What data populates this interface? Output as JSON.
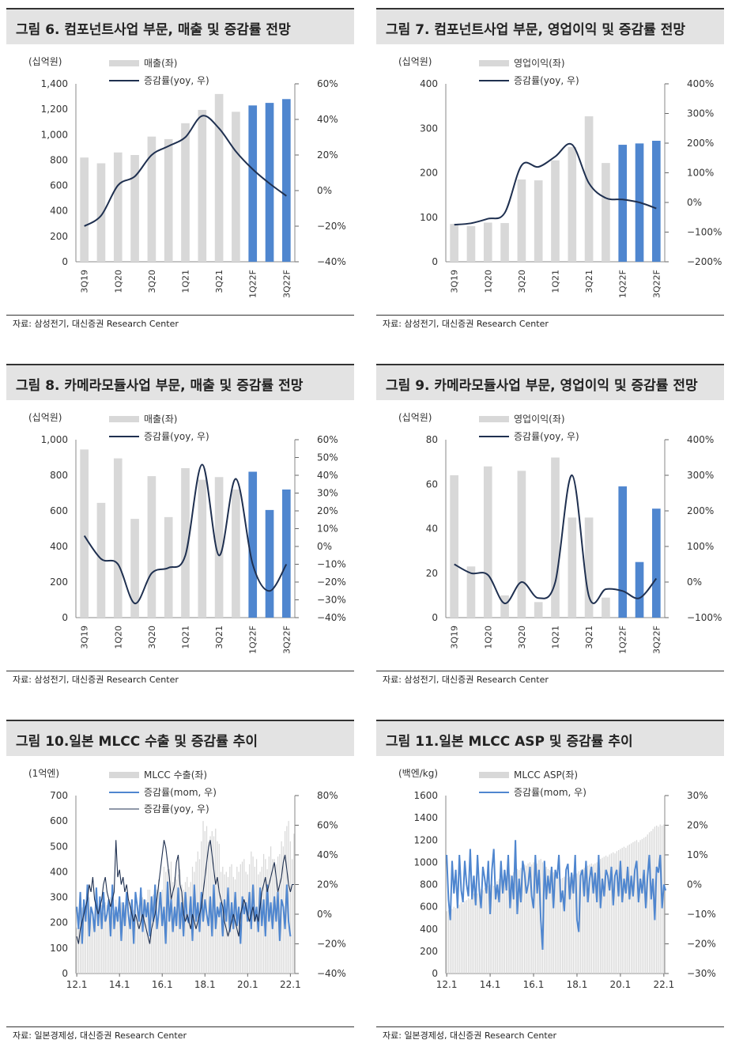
{
  "charts": [
    {
      "fig": "그림 6.",
      "title": "컴포넌트사업 부문, 매출 및 증감률 전망",
      "source": "자료: 삼성전기, 대신증권 Research Center",
      "unit": "(십억원)",
      "legend_bar": "매출(좌)",
      "legend_line": "증감률(yoy, 우)",
      "yticks": [
        "1,400",
        "1,200",
        "1,000",
        "800",
        "600",
        "400",
        "200",
        "0"
      ],
      "y2ticks": [
        "60%",
        "40%",
        "20%",
        "0%",
        "-20%",
        "-40%"
      ],
      "xlabels": [
        "3Q19",
        "1Q20",
        "3Q20",
        "1Q21",
        "3Q21",
        "1Q22F",
        "3Q22F"
      ]
    },
    {
      "fig": "그림 7.",
      "title": "컴포넌트사업 부문, 영업이익 및 증감률 전망",
      "source": "자료: 삼성전기, 대신증권 Research Center",
      "unit": "(십억원)",
      "legend_bar": "영업이익(좌)",
      "legend_line": "증감률(yoy, 우)",
      "yticks": [
        "400",
        "300",
        "200",
        "100",
        "0"
      ],
      "y2ticks": [
        "400%",
        "300%",
        "200%",
        "100%",
        "0%",
        "-100%",
        "-200%"
      ],
      "xlabels": [
        "3Q19",
        "1Q20",
        "3Q20",
        "1Q21",
        "3Q21",
        "1Q22F",
        "3Q22F"
      ]
    },
    {
      "fig": "그림 8.",
      "title": "카메라모듈사업 부문, 매출 및 증감률 전망",
      "source": "자료: 삼성전기, 대신증권 Research Center",
      "unit": "(십억원)",
      "legend_bar": "매출(좌)",
      "legend_line": "증감률(yoy, 우)",
      "yticks": [
        "1,000",
        "800",
        "600",
        "400",
        "200",
        "0"
      ],
      "y2ticks": [
        "60%",
        "50%",
        "40%",
        "30%",
        "20%",
        "10%",
        "0%",
        "-10%",
        "-20%",
        "-30%",
        "-40%"
      ],
      "xlabels": [
        "3Q19",
        "1Q20",
        "3Q20",
        "1Q21",
        "3Q21",
        "1Q22F",
        "3Q22F"
      ]
    },
    {
      "fig": "그림 9.",
      "title": "카메라모듈사업 부문, 영업이익 및 증감률 전망",
      "source": "자료: 삼성전기, 대신증권 Research Center",
      "unit": "(십억원)",
      "legend_bar": "영업이익(좌)",
      "legend_line": "증감률(yoy, 우)",
      "yticks": [
        "80",
        "60",
        "40",
        "20",
        "0"
      ],
      "y2ticks": [
        "400%",
        "300%",
        "200%",
        "100%",
        "0%",
        "-100%"
      ],
      "xlabels": [
        "3Q19",
        "1Q20",
        "3Q20",
        "1Q21",
        "3Q21",
        "1Q22F",
        "3Q22F"
      ]
    },
    {
      "fig": "그림 10.",
      "title": "일본 MLCC 수출 및 증감률 추이",
      "source": "자료: 일본경제성, 대신증권 Research Center",
      "unit": "(1억엔)",
      "legend_bar": "MLCC 수출(좌)",
      "legend_line": "증감률(mom, 우)",
      "legend_line2": "증감률(yoy, 우)",
      "yticks": [
        "700",
        "600",
        "500",
        "400",
        "300",
        "200",
        "100",
        "0"
      ],
      "y2ticks": [
        "80%",
        "60%",
        "40%",
        "20%",
        "0%",
        "-20%",
        "-40%"
      ],
      "xlabels": [
        "12.1",
        "14.1",
        "16.1",
        "18.1",
        "20.1",
        "22.1"
      ]
    },
    {
      "fig": "그림 11.",
      "title": "일본 MLCC ASP 및 증감률 추이",
      "source": "자료: 일본경제성, 대신증권 Research Center",
      "unit": "(백엔/kg)",
      "legend_bar": "MLCC ASP(좌)",
      "legend_line": "증감률(mom, 우)",
      "yticks": [
        "1600",
        "1400",
        "1200",
        "1000",
        "800",
        "600",
        "400",
        "200",
        "0"
      ],
      "y2ticks": [
        "30%",
        "20%",
        "10%",
        "0%",
        "-10%",
        "-20%",
        "-30%"
      ],
      "xlabels": [
        "12.1",
        "14.1",
        "16.1",
        "18.1",
        "20.1",
        "22.1"
      ]
    }
  ],
  "chart_data": [
    {
      "type": "bar",
      "categories": [
        "3Q19",
        "4Q19",
        "1Q20",
        "2Q20",
        "3Q20",
        "4Q20",
        "1Q21",
        "2Q21",
        "3Q21",
        "4Q21",
        "1Q22F",
        "2Q22F",
        "3Q22F"
      ],
      "series": [
        {
          "name": "매출(좌)",
          "axis": "left",
          "values": [
            820,
            775,
            860,
            840,
            985,
            965,
            1090,
            1195,
            1320,
            1180,
            1230,
            1250,
            1280
          ]
        },
        {
          "name": "증감률(yoy, 우)",
          "type": "line",
          "axis": "right",
          "values": [
            -20,
            -14,
            3,
            8,
            20,
            25,
            30,
            42,
            35,
            22,
            12,
            4,
            -3
          ]
        }
      ],
      "forecast_from": 10,
      "ylim": [
        0,
        1400
      ],
      "y2lim": [
        -40,
        60
      ]
    },
    {
      "type": "bar",
      "categories": [
        "3Q19",
        "4Q19",
        "1Q20",
        "2Q20",
        "3Q20",
        "4Q20",
        "1Q21",
        "2Q21",
        "3Q21",
        "4Q21",
        "1Q22F",
        "2Q22F",
        "3Q22F"
      ],
      "series": [
        {
          "name": "영업이익(좌)",
          "axis": "left",
          "values": [
            85,
            80,
            88,
            87,
            185,
            183,
            228,
            258,
            327,
            222,
            263,
            266,
            272
          ]
        },
        {
          "name": "증감률(yoy, 우)",
          "type": "line",
          "axis": "right",
          "values": [
            -75,
            -70,
            -55,
            -35,
            125,
            120,
            155,
            195,
            65,
            15,
            10,
            0,
            -20
          ]
        }
      ],
      "forecast_from": 10,
      "ylim": [
        0,
        400
      ],
      "y2lim": [
        -200,
        400
      ]
    },
    {
      "type": "bar",
      "categories": [
        "3Q19",
        "4Q19",
        "1Q20",
        "2Q20",
        "3Q20",
        "4Q20",
        "1Q21",
        "2Q21",
        "3Q21",
        "4Q21",
        "1Q22F",
        "2Q22F",
        "3Q22F"
      ],
      "series": [
        {
          "name": "매출(좌)",
          "axis": "left",
          "values": [
            945,
            645,
            895,
            555,
            795,
            565,
            840,
            775,
            790,
            720,
            820,
            605,
            720
          ]
        },
        {
          "name": "증감률(yoy, 우)",
          "type": "line",
          "axis": "right",
          "values": [
            6,
            -7,
            -10,
            -32,
            -15,
            -12,
            -5,
            46,
            -5,
            38,
            -10,
            -25,
            -10
          ]
        }
      ],
      "forecast_from": 10,
      "ylim": [
        0,
        1000
      ],
      "y2lim": [
        -40,
        60
      ]
    },
    {
      "type": "bar",
      "categories": [
        "3Q19",
        "4Q19",
        "1Q20",
        "2Q20",
        "3Q20",
        "4Q20",
        "1Q21",
        "2Q21",
        "3Q21",
        "4Q21",
        "1Q22F",
        "2Q22F",
        "3Q22F"
      ],
      "series": [
        {
          "name": "영업이익(좌)",
          "axis": "left",
          "values": [
            64,
            23,
            68,
            10,
            66,
            7,
            72,
            45,
            45,
            9,
            59,
            25,
            49
          ]
        },
        {
          "name": "증감률(yoy, 우)",
          "type": "line",
          "axis": "right",
          "values": [
            50,
            25,
            20,
            -60,
            0,
            -45,
            0,
            300,
            -40,
            -20,
            -25,
            -45,
            10
          ]
        }
      ],
      "forecast_from": 10,
      "ylim": [
        0,
        80
      ],
      "y2lim": [
        -100,
        400
      ]
    },
    {
      "type": "bar",
      "x_start": "2012-01",
      "x_end": "2022-03",
      "series": [
        {
          "name": "MLCC 수출(좌)",
          "axis": "left",
          "values": [
            180,
            240,
            300,
            260,
            230,
            210,
            270,
            300,
            250,
            220,
            200,
            260,
            210,
            260,
            270,
            240,
            280,
            270,
            260,
            300,
            240,
            250,
            290,
            240,
            230,
            280,
            260,
            270,
            290,
            280,
            280,
            290,
            250,
            290,
            280,
            270,
            270,
            300,
            280,
            290,
            330,
            330,
            290,
            310,
            300,
            330,
            370,
            320,
            330,
            420,
            400,
            410,
            410,
            440,
            360,
            380,
            370,
            390,
            410,
            350,
            330,
            360,
            380,
            340,
            360,
            420,
            400,
            440,
            480,
            450,
            520,
            600,
            560,
            580,
            520,
            540,
            560,
            540,
            570,
            520,
            510,
            400,
            420,
            390,
            400,
            380,
            420,
            430,
            380,
            370,
            420,
            400,
            430,
            440,
            450,
            400,
            390,
            430,
            480,
            460,
            420,
            450,
            390,
            400,
            420,
            470,
            450,
            410,
            460,
            500,
            450,
            450,
            430,
            460,
            470,
            520,
            500,
            560,
            580,
            600,
            520,
            450,
            550
          ]
        },
        {
          "name": "증감률(mom, 우)",
          "type": "line",
          "axis": "right",
          "values": [
            5,
            -10,
            15,
            -20,
            10,
            -5,
            20,
            -15,
            5,
            0,
            -12,
            18,
            -8,
            12,
            -10,
            15,
            -5,
            0,
            10,
            -15,
            20,
            -10,
            5,
            -5,
            12,
            -18,
            8,
            -8,
            15,
            0,
            -10,
            10,
            -20,
            15,
            5,
            -5,
            18,
            -12,
            10,
            -2,
            8,
            -15,
            12,
            -5,
            20,
            -10,
            0,
            15,
            -8,
            5,
            -20,
            22,
            -5,
            10,
            -12,
            5,
            -8,
            18,
            -10,
            8,
            -15,
            15,
            -3,
            -6,
            12,
            -18,
            20,
            -5,
            8,
            -12,
            15,
            -5,
            10,
            0,
            -8,
            12,
            -15,
            20,
            -10,
            5,
            -2,
            8,
            -15,
            10,
            -5,
            18,
            -12,
            8,
            -10,
            15,
            -8,
            5,
            -20,
            12,
            0,
            8,
            -5,
            15,
            -10,
            20,
            -5,
            5,
            -12,
            18,
            -8,
            10,
            -15,
            20,
            -5,
            8,
            -10,
            12,
            -5,
            15,
            -18,
            10,
            5,
            -10,
            20,
            -5,
            -15
          ]
        },
        {
          "name": "증감률(yoy, 우)",
          "type": "line",
          "axis": "right",
          "values": [
            -15,
            -20,
            -10,
            -5,
            0,
            5,
            10,
            20,
            15,
            25,
            10,
            5,
            0,
            5,
            10,
            20,
            25,
            15,
            10,
            5,
            10,
            15,
            50,
            25,
            30,
            20,
            25,
            15,
            20,
            10,
            5,
            0,
            -5,
            0,
            -5,
            -10,
            -5,
            0,
            -5,
            -10,
            -15,
            -20,
            -10,
            -5,
            0,
            10,
            20,
            30,
            40,
            50,
            45,
            35,
            25,
            10,
            15,
            20,
            35,
            40,
            20,
            15,
            0,
            -5,
            0,
            -5,
            -10,
            0,
            -5,
            -10,
            -5,
            0,
            5,
            15,
            25,
            35,
            45,
            50,
            40,
            30,
            20,
            25,
            15,
            10,
            5,
            -5,
            -10,
            -15,
            -10,
            -5,
            0,
            -5,
            -10,
            -15,
            0,
            5,
            10,
            5,
            0,
            -5,
            0,
            5,
            -5,
            0,
            -5,
            5,
            15,
            20,
            25,
            15,
            20,
            25,
            30,
            35,
            25,
            15,
            20,
            25,
            35,
            40,
            30,
            20,
            15,
            20,
            20
          ]
        }
      ],
      "ylim": [
        0,
        700
      ],
      "y2lim": [
        -40,
        80
      ]
    },
    {
      "type": "bar",
      "x_start": "2012-01",
      "x_end": "2022-03",
      "series": [
        {
          "name": "MLCC ASP(좌)",
          "axis": "left",
          "values": [
            560,
            570,
            560,
            580,
            600,
            590,
            610,
            620,
            640,
            630,
            650,
            660,
            680,
            670,
            700,
            720,
            730,
            720,
            740,
            760,
            750,
            770,
            780,
            790,
            800,
            810,
            790,
            820,
            830,
            850,
            860,
            840,
            870,
            880,
            900,
            890,
            880,
            910,
            920,
            940,
            930,
            950,
            960,
            980,
            970,
            990,
            1000,
            980,
            1000,
            1010,
            990,
            1020,
            1030,
            1000,
            980,
            960,
            940,
            930,
            920,
            910,
            900,
            880,
            870,
            850,
            860,
            870,
            880,
            860,
            870,
            880,
            890,
            880,
            900,
            920,
            930,
            940,
            950,
            960,
            970,
            980,
            990,
            980,
            990,
            1000,
            1010,
            1030,
            1040,
            1050,
            1060,
            1050,
            1070,
            1080,
            1090,
            1080,
            1100,
            1110,
            1120,
            1130,
            1140,
            1130,
            1150,
            1160,
            1170,
            1180,
            1190,
            1200,
            1180,
            1200,
            1210,
            1220,
            1230,
            1250,
            1270,
            1280,
            1300,
            1320,
            1330,
            1320,
            1340,
            1330,
            1340
          ]
        },
        {
          "name": "증감률(mom, 우)",
          "type": "line",
          "axis": "right",
          "values": [
            10,
            -5,
            -12,
            8,
            -3,
            5,
            -8,
            10,
            -2,
            -6,
            8,
            0,
            -4,
            12,
            -5,
            3,
            -7,
            10,
            -2,
            -8,
            6,
            2,
            -3,
            8,
            -10,
            5,
            12,
            -5,
            0,
            -6,
            8,
            -3,
            5,
            -2,
            10,
            -8,
            3,
            -5,
            15,
            -10,
            2,
            -6,
            8,
            4,
            -3,
            0,
            6,
            -4,
            -8,
            10,
            -3,
            5,
            -12,
            -22,
            8,
            -5,
            3,
            -3,
            6,
            -8,
            5,
            2,
            10,
            -6,
            -2,
            -9,
            5,
            7,
            -5,
            4,
            -3,
            10,
            -12,
            -16,
            3,
            5,
            -4,
            8,
            -6,
            2,
            6,
            -3,
            4,
            -6,
            10,
            -8,
            2,
            -4,
            5,
            3,
            -2,
            6,
            -7,
            3,
            5,
            -4,
            8,
            -6,
            2,
            -3,
            6,
            -5,
            3,
            -4,
            5,
            8,
            -6,
            2,
            -3,
            5,
            -8,
            3,
            10,
            -5,
            2,
            -12,
            6,
            4,
            10,
            -8,
            0,
            -2
          ]
        }
      ],
      "ylim": [
        0,
        1600
      ],
      "y2lim": [
        -30,
        30
      ]
    }
  ],
  "colors": {
    "bar_actual": "#d8d8d8",
    "bar_forecast": "#4f86cf",
    "line_dark": "#1f3050",
    "line_blue": "#4f86cf",
    "header_bg": "#e3e3e3"
  }
}
